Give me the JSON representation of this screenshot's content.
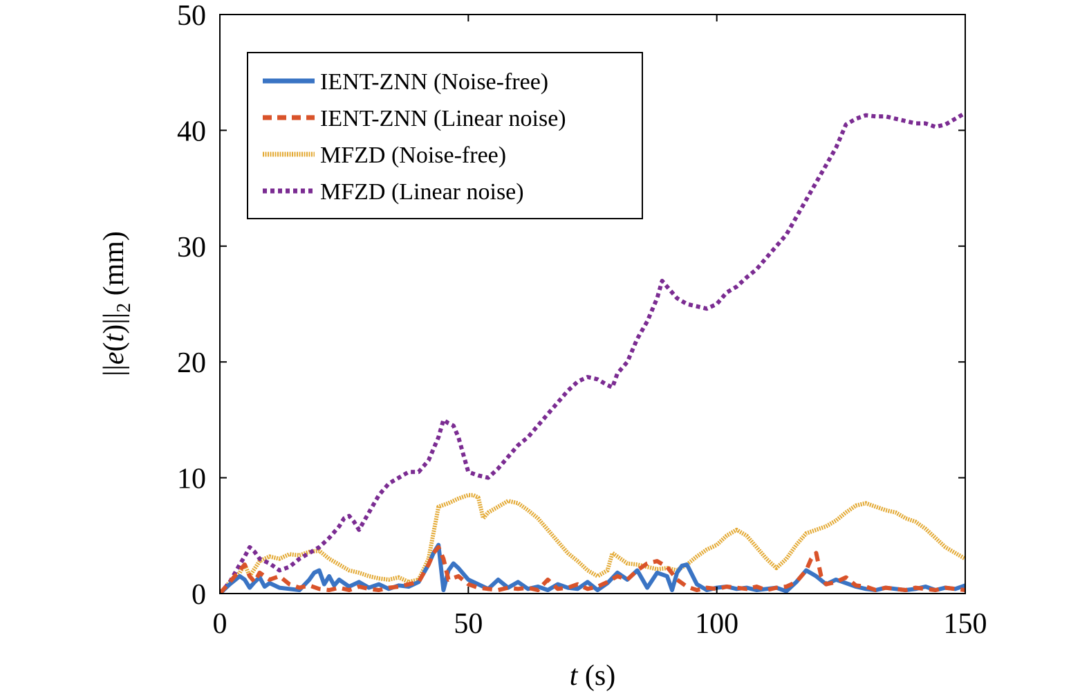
{
  "chart_data": {
    "type": "line",
    "xlabel": {
      "var": "t",
      "unit": " (s)"
    },
    "ylabel": {
      "pre": "||",
      "var": "e",
      "mid": "(",
      "var2": "t",
      "post": ")||",
      "sub": "2",
      "unit": " (mm)"
    },
    "xlim": [
      0,
      150
    ],
    "ylim": [
      0,
      50
    ],
    "xticks": [
      0,
      50,
      100,
      150
    ],
    "yticks": [
      0,
      10,
      20,
      30,
      40,
      50
    ],
    "xtick_labels": [
      "0",
      "50",
      "100",
      "150"
    ],
    "ytick_labels": [
      "0",
      "10",
      "20",
      "30",
      "40",
      "50"
    ],
    "grid": false,
    "legend_position": "top-left",
    "series": [
      {
        "name": "IENT-ZNN (Noise-free)",
        "color": "#3a74c4",
        "style": "solid",
        "x": [
          0,
          2,
          4,
          5,
          6,
          7,
          8,
          9,
          10,
          12,
          14,
          16,
          18,
          19,
          20,
          21,
          22,
          23,
          24,
          26,
          28,
          30,
          32,
          34,
          36,
          38,
          40,
          42,
          43,
          44,
          45,
          46,
          47,
          48,
          50,
          52,
          54,
          56,
          58,
          60,
          62,
          64,
          66,
          68,
          70,
          72,
          74,
          76,
          78,
          80,
          82,
          84,
          86,
          88,
          90,
          91,
          92,
          93,
          94,
          96,
          98,
          100,
          102,
          104,
          106,
          108,
          110,
          112,
          114,
          116,
          118,
          120,
          122,
          124,
          126,
          128,
          130,
          132,
          134,
          136,
          138,
          140,
          142,
          144,
          146,
          148,
          150
        ],
        "y": [
          0,
          0.8,
          1.5,
          1.2,
          0.5,
          1.0,
          1.4,
          0.6,
          0.9,
          0.5,
          0.4,
          0.3,
          1.2,
          1.8,
          2.0,
          0.8,
          1.5,
          0.7,
          1.2,
          0.6,
          1.0,
          0.5,
          0.8,
          0.4,
          0.7,
          0.6,
          1.0,
          2.5,
          3.5,
          4.2,
          0.3,
          2.0,
          2.6,
          2.2,
          1.2,
          0.8,
          0.4,
          1.2,
          0.5,
          1.0,
          0.4,
          0.6,
          0.3,
          0.8,
          0.5,
          0.4,
          1.0,
          0.3,
          0.9,
          1.8,
          1.2,
          2.0,
          0.5,
          1.8,
          1.5,
          0.3,
          1.8,
          2.4,
          2.5,
          0.8,
          0.3,
          0.5,
          0.6,
          0.4,
          0.5,
          0.3,
          0.4,
          0.5,
          0.2,
          1.0,
          2.0,
          1.5,
          0.8,
          1.2,
          0.9,
          0.6,
          0.4,
          0.3,
          0.5,
          0.4,
          0.3,
          0.4,
          0.6,
          0.3,
          0.5,
          0.4,
          0.7
        ]
      },
      {
        "name": "IENT-ZNN (Linear noise)",
        "color": "#d9532a",
        "style": "dashed",
        "x": [
          0,
          2,
          4,
          5,
          6,
          7,
          8,
          10,
          12,
          14,
          16,
          18,
          20,
          22,
          24,
          26,
          28,
          30,
          32,
          34,
          36,
          38,
          40,
          42,
          43,
          44,
          45,
          46,
          48,
          50,
          52,
          54,
          56,
          58,
          60,
          62,
          64,
          66,
          68,
          70,
          72,
          74,
          76,
          78,
          80,
          82,
          84,
          86,
          88,
          90,
          92,
          94,
          96,
          98,
          100,
          102,
          104,
          106,
          108,
          110,
          112,
          114,
          116,
          118,
          119,
          120,
          121,
          122,
          124,
          126,
          128,
          130,
          132,
          134,
          136,
          138,
          140,
          142,
          144,
          146,
          148,
          150
        ],
        "y": [
          0,
          1.0,
          2.0,
          2.5,
          1.5,
          1.0,
          1.8,
          1.2,
          1.5,
          0.8,
          0.5,
          0.7,
          0.4,
          0.3,
          0.5,
          0.3,
          0.6,
          0.4,
          0.3,
          0.5,
          0.6,
          0.8,
          1.0,
          2.5,
          3.5,
          4.0,
          3.0,
          1.2,
          1.5,
          0.8,
          0.5,
          0.4,
          0.3,
          0.5,
          0.4,
          0.5,
          0.3,
          1.2,
          0.4,
          0.5,
          0.8,
          0.4,
          0.6,
          1.0,
          1.5,
          1.2,
          2.0,
          2.6,
          2.8,
          2.3,
          1.2,
          0.6,
          0.3,
          0.5,
          0.4,
          0.6,
          0.5,
          0.4,
          0.6,
          0.3,
          0.5,
          0.6,
          1.0,
          2.0,
          3.0,
          3.5,
          1.5,
          0.8,
          1.0,
          1.4,
          0.7,
          0.6,
          0.3,
          0.5,
          0.4,
          0.3,
          0.5,
          0.4,
          0.3,
          0.5,
          0.4,
          0.3
        ]
      },
      {
        "name": "MFZD (Noise-free)",
        "color": "#e3a934",
        "style": "hatched",
        "x": [
          0,
          2,
          4,
          5,
          6,
          8,
          10,
          12,
          14,
          16,
          18,
          20,
          22,
          24,
          26,
          28,
          30,
          32,
          34,
          36,
          38,
          40,
          42,
          44,
          46,
          48,
          50,
          51,
          52,
          53,
          54,
          56,
          58,
          60,
          62,
          64,
          66,
          68,
          70,
          72,
          74,
          76,
          78,
          79,
          80,
          82,
          84,
          86,
          88,
          90,
          92,
          94,
          96,
          98,
          100,
          102,
          104,
          106,
          108,
          110,
          112,
          114,
          116,
          118,
          120,
          122,
          124,
          126,
          128,
          130,
          132,
          134,
          136,
          138,
          140,
          142,
          144,
          146,
          148,
          150
        ],
        "y": [
          0,
          1.0,
          1.8,
          2.5,
          1.5,
          2.8,
          3.2,
          3.0,
          3.4,
          3.3,
          3.6,
          3.7,
          3.0,
          2.5,
          2.0,
          1.8,
          1.5,
          1.3,
          1.2,
          1.4,
          1.0,
          1.2,
          3.0,
          7.5,
          7.8,
          8.2,
          8.5,
          8.5,
          8.3,
          6.5,
          7.0,
          7.5,
          8.0,
          7.8,
          7.2,
          6.5,
          5.5,
          4.5,
          3.5,
          2.8,
          2.0,
          1.5,
          2.0,
          3.5,
          3.2,
          2.6,
          2.5,
          2.3,
          2.1,
          2.2,
          2.0,
          2.5,
          3.2,
          3.8,
          4.2,
          5.0,
          5.5,
          5.0,
          4.0,
          3.0,
          2.2,
          3.0,
          4.2,
          5.2,
          5.5,
          5.8,
          6.3,
          7.0,
          7.6,
          7.8,
          7.5,
          7.2,
          7.0,
          6.5,
          6.2,
          5.6,
          4.8,
          4.0,
          3.5,
          3.0
        ]
      },
      {
        "name": "MFZD (Linear noise)",
        "color": "#7b2c92",
        "style": "dotted",
        "x": [
          0,
          2,
          4,
          5,
          6,
          7,
          8,
          10,
          12,
          14,
          16,
          18,
          20,
          22,
          24,
          25,
          26,
          27,
          28,
          30,
          32,
          34,
          36,
          38,
          40,
          42,
          44,
          45,
          46,
          47,
          48,
          50,
          52,
          54,
          56,
          58,
          60,
          62,
          64,
          66,
          68,
          70,
          72,
          74,
          76,
          78,
          79,
          80,
          82,
          84,
          86,
          88,
          89,
          90,
          92,
          94,
          96,
          98,
          100,
          102,
          104,
          106,
          108,
          110,
          112,
          114,
          116,
          118,
          120,
          122,
          124,
          126,
          128,
          130,
          132,
          134,
          136,
          138,
          140,
          142,
          144,
          146,
          148,
          150
        ],
        "y": [
          0,
          1.0,
          2.5,
          3.2,
          4.0,
          3.6,
          3.0,
          2.6,
          2.0,
          2.3,
          3.0,
          3.5,
          4.0,
          4.8,
          5.8,
          6.5,
          6.7,
          6.2,
          5.5,
          7.0,
          8.5,
          9.5,
          10.0,
          10.5,
          10.5,
          11.5,
          13.5,
          15.0,
          14.7,
          14.5,
          13.5,
          10.5,
          10.2,
          10.0,
          10.8,
          11.8,
          12.8,
          13.5,
          14.5,
          15.5,
          16.5,
          17.5,
          18.3,
          18.7,
          18.5,
          18.0,
          17.8,
          19.0,
          20.0,
          22.0,
          23.5,
          25.5,
          27.0,
          26.5,
          25.5,
          25.0,
          24.8,
          24.6,
          25.0,
          26.0,
          26.5,
          27.3,
          28.0,
          29.0,
          30.0,
          31.0,
          32.5,
          34.0,
          35.5,
          37.0,
          38.5,
          40.5,
          41.0,
          41.3,
          41.2,
          41.2,
          41.0,
          40.8,
          40.6,
          40.6,
          40.3,
          40.5,
          41.0,
          41.5
        ]
      }
    ]
  }
}
